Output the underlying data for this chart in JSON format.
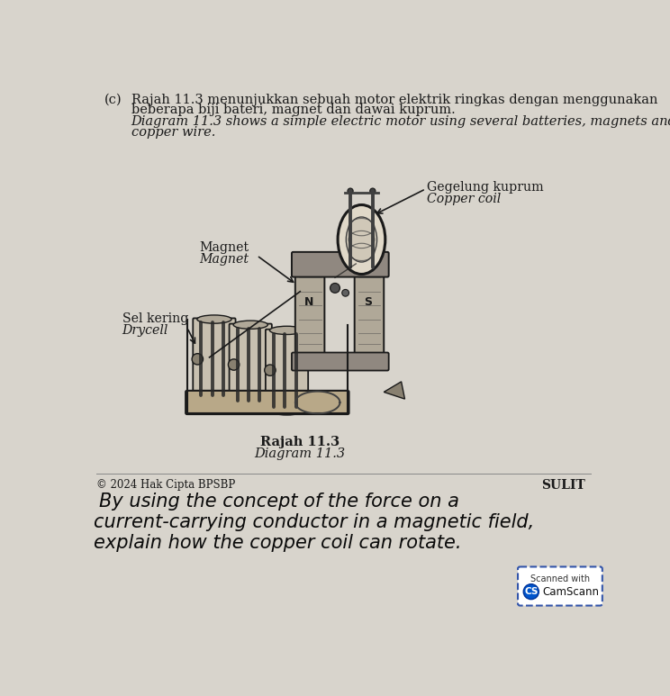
{
  "bg_color": "#d8d4cc",
  "title_c": "(c)",
  "malay_line1": "Rajah 11.3 menunjukkan sebuah motor elektrik ringkas dengan menggunakan",
  "malay_line2": "beberapa biji bateri, magnet dan dawai kuprum.",
  "eng_line1": "Diagram 11.3 shows a simple electric motor using several batteries, magnets and",
  "eng_line2": "copper wire.",
  "lbl_gegelung": "Gegelung kuprum",
  "lbl_copper_coil": "Copper coil",
  "lbl_magnet1": "Magnet",
  "lbl_magnet2": "Magnet",
  "lbl_sel": "Sel kering",
  "lbl_drycell": "Drycell",
  "cap_rajah": "Rajah 11.3",
  "cap_diagram": "Diagram 11.3",
  "copyright": "© 2024 Hak Cipta BPSBP",
  "sulit": "SULIT",
  "hw1": "By using the concept of the force on a",
  "hw2": "current-carrying conductor in a magnetic field,",
  "hw3": "explain how the copper coil can rotate.",
  "scanned_with": "Scanned with",
  "camscanner": "CamScann"
}
